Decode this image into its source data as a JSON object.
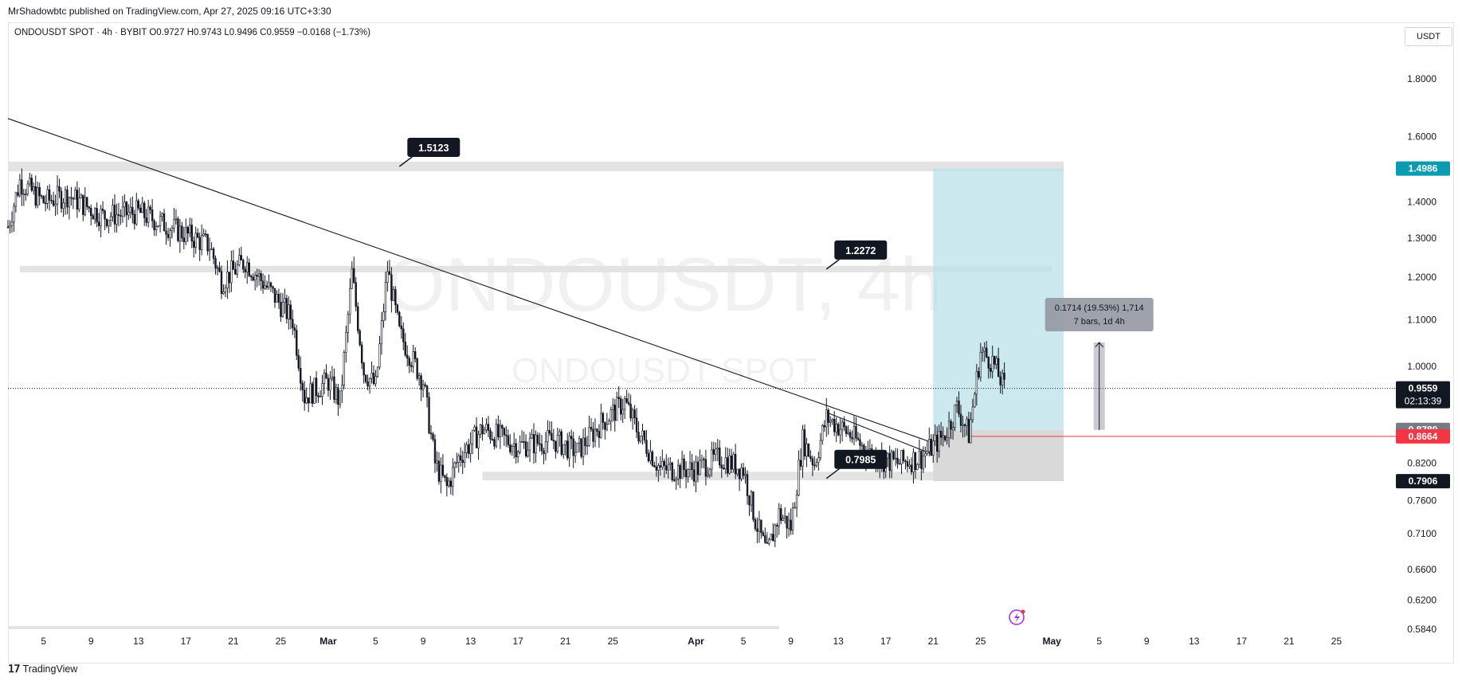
{
  "header": {
    "published": "MrShadowbtc published on TradingView.com, Apr 27, 2025 09:16 UTC+3:30"
  },
  "legend": {
    "symbol": "ONDOUSDT SPOT · 4h · BYBIT",
    "open": "O0.9727",
    "high": "H0.9743",
    "low": "L0.9496",
    "close": "C0.9559",
    "change": "−0.0168 (−1.73%)"
  },
  "currency": "USDT",
  "watermark": {
    "title": "ONDOUSDT, 4h",
    "subtitle": "ONDOUSDT SPOT"
  },
  "brand": "TradingView",
  "colors": {
    "candle": "#131722",
    "zone": "#e3e3e3",
    "target_zone": "#b7e0e8",
    "stop_zone": "#d9d9d9",
    "target_badge": "#0a9bb0",
    "stop_badge": "#f23645",
    "dark_badge": "#131722",
    "measure_box": "#9598a1"
  },
  "chart_data": {
    "type": "candlestick",
    "title": "ONDOUSDT, 4h",
    "y_scale": "log",
    "ylim": [
      0.584,
      1.95
    ],
    "y_ticks": [
      "1.8000",
      "1.6000",
      "1.4000",
      "1.3000",
      "1.2000",
      "1.1000",
      "1.0000",
      "0.8200",
      "0.7600",
      "0.7100",
      "0.6600",
      "0.6200",
      "0.5840"
    ],
    "x_ticks": [
      "5",
      "9",
      "13",
      "17",
      "21",
      "25",
      "Mar",
      "5",
      "9",
      "13",
      "17",
      "21",
      "25",
      "Apr",
      "5",
      "9",
      "13",
      "17",
      "21",
      "25",
      "May",
      "5",
      "9",
      "13",
      "17",
      "21",
      "25"
    ],
    "x_range_dates": [
      "2025-02-02",
      "2025-05-29"
    ],
    "price_path": [
      {
        "date": "2025-02-02",
        "price": 1.33
      },
      {
        "date": "2025-02-03",
        "price": 1.46
      },
      {
        "date": "2025-02-05",
        "price": 1.4
      },
      {
        "date": "2025-02-07",
        "price": 1.42
      },
      {
        "date": "2025-02-10",
        "price": 1.36
      },
      {
        "date": "2025-02-13",
        "price": 1.37
      },
      {
        "date": "2025-02-15",
        "price": 1.34
      },
      {
        "date": "2025-02-17",
        "price": 1.31
      },
      {
        "date": "2025-02-19",
        "price": 1.28
      },
      {
        "date": "2025-02-20",
        "price": 1.19
      },
      {
        "date": "2025-02-22",
        "price": 1.24
      },
      {
        "date": "2025-02-24",
        "price": 1.17
      },
      {
        "date": "2025-02-26",
        "price": 1.1
      },
      {
        "date": "2025-02-27",
        "price": 0.94
      },
      {
        "date": "2025-03-01",
        "price": 0.97
      },
      {
        "date": "2025-03-02",
        "price": 0.93
      },
      {
        "date": "2025-03-03",
        "price": 1.21
      },
      {
        "date": "2025-03-04",
        "price": 0.99
      },
      {
        "date": "2025-03-05",
        "price": 0.96
      },
      {
        "date": "2025-03-06",
        "price": 1.22
      },
      {
        "date": "2025-03-07",
        "price": 1.07
      },
      {
        "date": "2025-03-09",
        "price": 0.97
      },
      {
        "date": "2025-03-10",
        "price": 0.82
      },
      {
        "date": "2025-03-11",
        "price": 0.78
      },
      {
        "date": "2025-03-12",
        "price": 0.83
      },
      {
        "date": "2025-03-14",
        "price": 0.88
      },
      {
        "date": "2025-03-17",
        "price": 0.85
      },
      {
        "date": "2025-03-20",
        "price": 0.86
      },
      {
        "date": "2025-03-22",
        "price": 0.84
      },
      {
        "date": "2025-03-24",
        "price": 0.89
      },
      {
        "date": "2025-03-26",
        "price": 0.93
      },
      {
        "date": "2025-03-27",
        "price": 0.88
      },
      {
        "date": "2025-03-29",
        "price": 0.81
      },
      {
        "date": "2025-04-01",
        "price": 0.81
      },
      {
        "date": "2025-04-03",
        "price": 0.83
      },
      {
        "date": "2025-04-05",
        "price": 0.81
      },
      {
        "date": "2025-04-06",
        "price": 0.73
      },
      {
        "date": "2025-04-07",
        "price": 0.68
      },
      {
        "date": "2025-04-08",
        "price": 0.74
      },
      {
        "date": "2025-04-09",
        "price": 0.72
      },
      {
        "date": "2025-04-10",
        "price": 0.86
      },
      {
        "date": "2025-04-11",
        "price": 0.82
      },
      {
        "date": "2025-04-12",
        "price": 0.9
      },
      {
        "date": "2025-04-14",
        "price": 0.87
      },
      {
        "date": "2025-04-16",
        "price": 0.83
      },
      {
        "date": "2025-04-18",
        "price": 0.82
      },
      {
        "date": "2025-04-20",
        "price": 0.83
      },
      {
        "date": "2025-04-22",
        "price": 0.87
      },
      {
        "date": "2025-04-23",
        "price": 0.92
      },
      {
        "date": "2025-04-24",
        "price": 0.87
      },
      {
        "date": "2025-04-25",
        "price": 1.03
      },
      {
        "date": "2025-04-26",
        "price": 1.01
      },
      {
        "date": "2025-04-27",
        "price": 0.9559
      }
    ],
    "zones": [
      {
        "from": "2025-02-02",
        "to": "2025-05-02",
        "price_top": 1.52,
        "price_bottom": 1.49
      },
      {
        "from": "2025-02-03",
        "to": "2025-05-01",
        "price_top": 1.228,
        "price_bottom": 1.212
      },
      {
        "from": "2025-03-14",
        "to": "2025-04-26",
        "price_top": 0.806,
        "price_bottom": 0.792
      },
      {
        "from": "2025-02-02",
        "to": "2025-04-08",
        "price_top": 0.588,
        "price_bottom": 0.584
      }
    ],
    "trendlines": [
      {
        "from": {
          "date": "2025-02-02",
          "price": 1.66
        },
        "to": {
          "date": "2025-04-21",
          "price": 0.855
        }
      },
      {
        "from": {
          "date": "2025-04-12",
          "price": 0.91
        },
        "to": {
          "date": "2025-04-21",
          "price": 0.835
        }
      }
    ],
    "position": {
      "from": "2025-04-21",
      "to": "2025-05-02",
      "target": 1.4986,
      "entry": 0.878,
      "stop": 0.7906
    },
    "annotations": [
      {
        "text": "1.5123",
        "date": "2025-03-07",
        "price": 1.505
      },
      {
        "text": "1.2272",
        "date": "2025-04-12",
        "price": 1.22
      },
      {
        "text": "0.7985",
        "date": "2025-04-12",
        "price": 0.795
      }
    ],
    "measure": {
      "label_line1": "0.1714 (19.53%) 1,714",
      "label_line2": "7 bars, 1d 4h",
      "date": "2025-05-05",
      "price_top": 1.05,
      "price_bottom": 0.878
    },
    "horizontal_lines": [
      {
        "price": 0.8664,
        "from": "2025-04-24",
        "color": "#f23645"
      }
    ],
    "price_badges": [
      {
        "text": "1.4986",
        "price": 1.4986,
        "color": "#0a9bb0"
      },
      {
        "text": "0.9559",
        "sub": "02:13:39",
        "price": 0.9559,
        "color": "#131722"
      },
      {
        "text": "0.8780",
        "price": 0.878,
        "color": "#787b86"
      },
      {
        "text": "0.8664",
        "price": 0.8664,
        "color": "#f23645"
      },
      {
        "text": "0.7906",
        "price": 0.7906,
        "color": "#131722"
      }
    ]
  }
}
